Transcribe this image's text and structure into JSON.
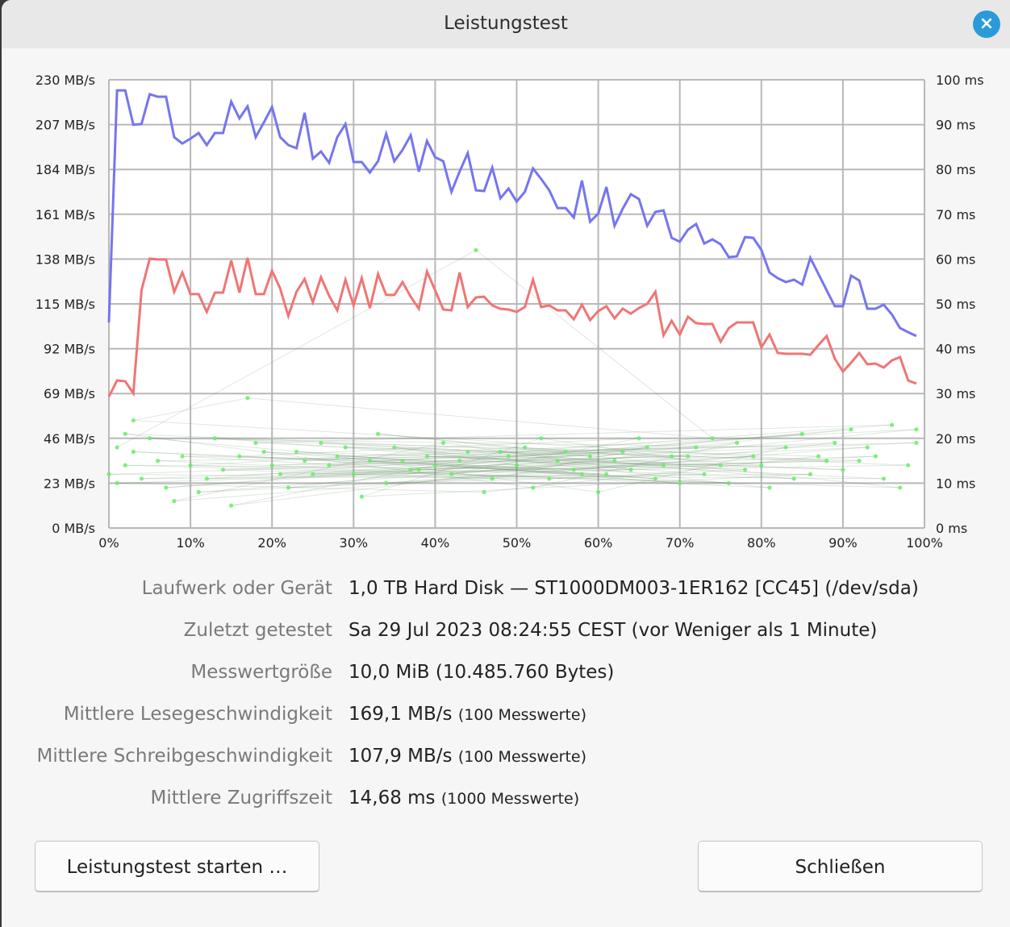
{
  "dialog": {
    "title": "Leistungstest",
    "close_icon": "close-icon"
  },
  "info": [
    {
      "label": "Laufwerk oder Gerät",
      "value": "1,0 TB Hard Disk — ST1000DM003-1ER162 [CC45] (/dev/sda)",
      "note": ""
    },
    {
      "label": "Zuletzt getestet",
      "value": "Sa 29 Jul 2023 08:24:55 CEST (vor Weniger als 1 Minute)",
      "note": ""
    },
    {
      "label": "Messwertgröße",
      "value": "10,0 MiB (10.485.760 Bytes)",
      "note": ""
    },
    {
      "label": "Mittlere Lesegeschwindigkeit",
      "value": "169,1 MB/s",
      "note": "(100 Messwerte)"
    },
    {
      "label": "Mittlere Schreibgeschwindigkeit",
      "value": "107,9 MB/s",
      "note": "(100 Messwerte)"
    },
    {
      "label": "Mittlere Zugriffszeit",
      "value": "14,68 ms",
      "note": "(1000 Messwerte)"
    }
  ],
  "buttons": {
    "start": "Leistungstest starten …",
    "close": "Schließen"
  },
  "chart_data": {
    "type": "line",
    "grid": true,
    "x_ticks": [
      "0%",
      "10%",
      "20%",
      "30%",
      "40%",
      "50%",
      "60%",
      "70%",
      "80%",
      "90%",
      "100%"
    ],
    "xlim": [
      0,
      100
    ],
    "y_left_ticks": [
      "230 MB/s",
      "207 MB/s",
      "184 MB/s",
      "161 MB/s",
      "138 MB/s",
      "115 MB/s",
      "92 MB/s",
      "69 MB/s",
      "46 MB/s",
      "23 MB/s",
      "0 MB/s"
    ],
    "ylim_left": [
      0,
      230
    ],
    "y_right_ticks": [
      "100 ms",
      "90 ms",
      "80 ms",
      "70 ms",
      "60 ms",
      "50 ms",
      "40 ms",
      "30 ms",
      "20 ms",
      "10 ms",
      "0 ms"
    ],
    "ylim_right": [
      0,
      100
    ],
    "colors": {
      "read": "#7575f0",
      "write": "#f07575",
      "access": "#66ee66",
      "access_line": "#507850",
      "grid": "#b8b8b8"
    },
    "series": [
      {
        "key": "read",
        "axis": "left",
        "values": [
          105.5,
          224.6,
          224.6,
          206.9,
          207.3,
          222.6,
          221.3,
          221.3,
          200.6,
          197.3,
          199.8,
          202.7,
          196.5,
          202.7,
          202.7,
          218.8,
          210.2,
          216.4,
          200.6,
          208.1,
          216.0,
          200.6,
          196.5,
          194.9,
          213.1,
          189.5,
          193.2,
          187.4,
          200.6,
          207.3,
          187.8,
          187.8,
          182.4,
          188.2,
          202.3,
          188.2,
          194.0,
          201.5,
          182.9,
          198.6,
          190.3,
          188.2,
          172.5,
          182.9,
          192.4,
          173.3,
          172.9,
          184.9,
          169.2,
          174.2,
          167.5,
          172.5,
          184.5,
          179.1,
          173.3,
          164.2,
          164.2,
          159.3,
          178.3,
          157.2,
          161.3,
          175.0,
          155.1,
          163.8,
          171.3,
          168.8,
          155.1,
          162.2,
          163.0,
          148.9,
          146.9,
          153.1,
          156.0,
          146.0,
          148.1,
          145.6,
          139.0,
          139.4,
          149.3,
          148.9,
          142.7,
          131.1,
          128.2,
          126.2,
          127.4,
          124.9,
          138.6,
          130.3,
          122.0,
          113.8,
          113.8,
          129.5,
          127.0,
          112.5,
          112.5,
          114.6,
          109.6,
          102.6,
          100.5,
          98.5
        ]
      },
      {
        "key": "write",
        "axis": "left",
        "values": [
          67.4,
          75.7,
          75.3,
          69.1,
          122.0,
          138.2,
          137.8,
          137.8,
          121.2,
          131.1,
          120.0,
          120.0,
          110.9,
          120.8,
          120.8,
          137.3,
          120.8,
          138.6,
          120.0,
          120.0,
          132.0,
          122.9,
          108.8,
          121.2,
          127.8,
          115.8,
          128.7,
          119.1,
          111.7,
          127.4,
          114.2,
          128.2,
          112.9,
          130.3,
          119.6,
          119.6,
          126.2,
          118.7,
          112.5,
          131.6,
          122.0,
          112.1,
          111.7,
          131.1,
          113.4,
          118.3,
          118.7,
          114.2,
          112.5,
          112.1,
          110.9,
          113.4,
          127.4,
          113.4,
          114.2,
          111.7,
          111.7,
          107.1,
          114.6,
          106.7,
          111.3,
          113.8,
          107.6,
          112.5,
          110.0,
          112.9,
          115.0,
          121.2,
          98.9,
          106.3,
          99.3,
          108.4,
          105.1,
          104.7,
          104.7,
          95.6,
          102.6,
          105.5,
          105.5,
          105.5,
          92.7,
          99.3,
          89.8,
          89.4,
          89.4,
          89.4,
          88.9,
          93.9,
          98.5,
          86.9,
          80.3,
          84.8,
          89.8,
          84.0,
          84.4,
          82.3,
          86.0,
          87.7,
          75.7,
          74.1
        ]
      },
      {
        "key": "access",
        "axis": "right",
        "points": [
          [
            1,
            18
          ],
          [
            45,
            62
          ],
          [
            74,
            20
          ],
          [
            17,
            29
          ],
          [
            3,
            24
          ],
          [
            88,
            15
          ],
          [
            12,
            11
          ],
          [
            56,
            17
          ],
          [
            33,
            21
          ],
          [
            97,
            9
          ],
          [
            2,
            14
          ],
          [
            64,
            13
          ],
          [
            41,
            19
          ],
          [
            8,
            6
          ],
          [
            79,
            16
          ],
          [
            25,
            12
          ],
          [
            91,
            22
          ],
          [
            50,
            14
          ],
          [
            19,
            17
          ],
          [
            70,
            10
          ],
          [
            36,
            15
          ],
          [
            5,
            20
          ],
          [
            83,
            18
          ],
          [
            60,
            8
          ],
          [
            28,
            16
          ],
          [
            99,
            19
          ],
          [
            14,
            13
          ],
          [
            47,
            11
          ],
          [
            66,
            18
          ],
          [
            22,
            9
          ],
          [
            94,
            16
          ],
          [
            38,
            13
          ],
          [
            9,
            16
          ],
          [
            75,
            14
          ],
          [
            53,
            20
          ],
          [
            31,
            7
          ],
          [
            86,
            12
          ],
          [
            4,
            11
          ],
          [
            62,
            15
          ],
          [
            44,
            17
          ],
          [
            18,
            19
          ],
          [
            96,
            23
          ],
          [
            27,
            14
          ],
          [
            71,
            16
          ],
          [
            11,
            8
          ],
          [
            58,
            12
          ],
          [
            35,
            18
          ],
          [
            81,
            9
          ],
          [
            6,
            15
          ],
          [
            49,
            16
          ],
          [
            90,
            13
          ],
          [
            23,
            17
          ],
          [
            67,
            11
          ],
          [
            40,
            14
          ],
          [
            15,
            5
          ],
          [
            77,
            19
          ],
          [
            52,
            9
          ],
          [
            2,
            21
          ],
          [
            98,
            14
          ],
          [
            30,
            12
          ],
          [
            85,
            21
          ],
          [
            43,
            15
          ],
          [
            20,
            14
          ],
          [
            63,
            17
          ],
          [
            7,
            9
          ],
          [
            55,
            15
          ],
          [
            93,
            18
          ],
          [
            34,
            10
          ],
          [
            73,
            12
          ],
          [
            13,
            20
          ],
          [
            59,
            16
          ],
          [
            26,
            19
          ],
          [
            87,
            16
          ],
          [
            46,
            8
          ],
          [
            1,
            10
          ],
          [
            68,
            14
          ],
          [
            39,
            16
          ],
          [
            95,
            11
          ],
          [
            21,
            12
          ],
          [
            80,
            14
          ],
          [
            51,
            18
          ],
          [
            10,
            14
          ],
          [
            76,
            10
          ],
          [
            32,
            15
          ],
          [
            89,
            19
          ],
          [
            57,
            13
          ],
          [
            16,
            16
          ],
          [
            65,
            20
          ],
          [
            42,
            12
          ],
          [
            99,
            22
          ],
          [
            24,
            15
          ],
          [
            72,
            18
          ],
          [
            48,
            17
          ],
          [
            84,
            11
          ],
          [
            3,
            17
          ],
          [
            61,
            12
          ],
          [
            37,
            13
          ],
          [
            92,
            15
          ],
          [
            29,
            18
          ],
          [
            78,
            13
          ],
          [
            54,
            11
          ],
          [
            0,
            12
          ],
          [
            69,
            16
          ]
        ]
      }
    ]
  }
}
